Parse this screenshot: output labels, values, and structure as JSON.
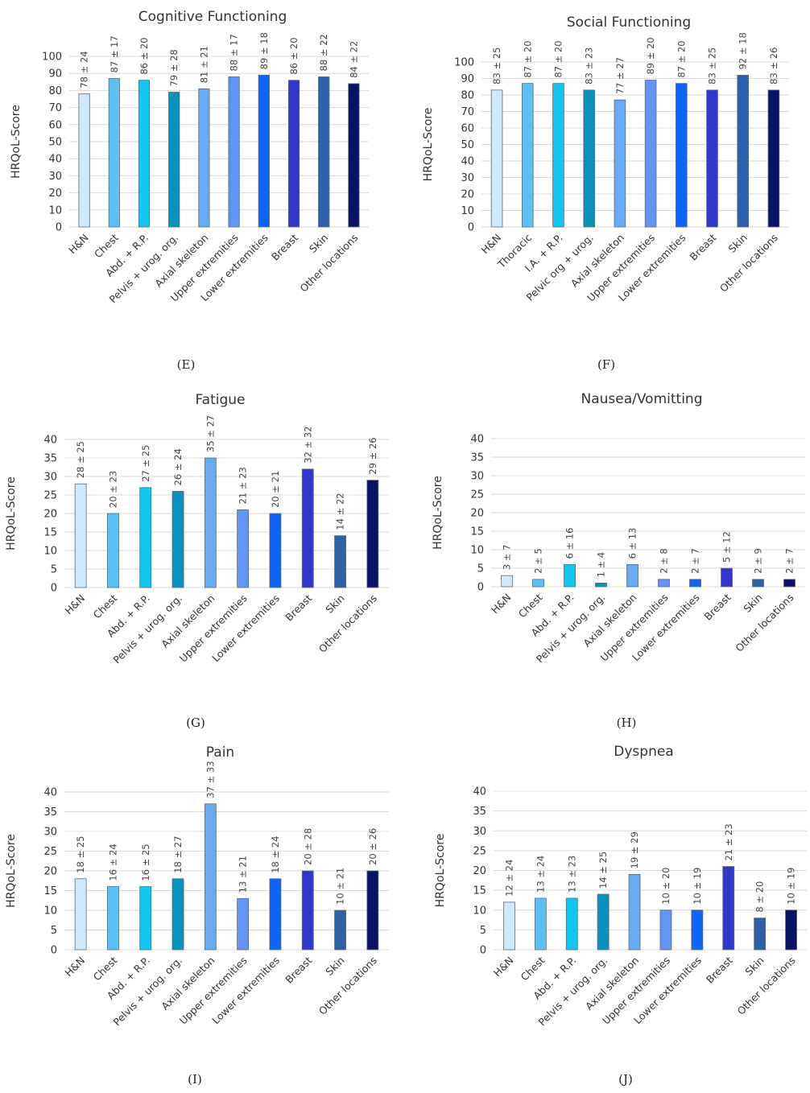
{
  "colors": [
    "#cfe8fb",
    "#5cc0f4",
    "#12c6ef",
    "#0892bc",
    "#68aaf0",
    "#6494f3",
    "#0e64f6",
    "#3337c9",
    "#2f5fa4",
    "#0a1266"
  ],
  "ylabel": "HRQoL-Score",
  "chart_data": [
    {
      "type": "bar",
      "panel_label": "(E)",
      "title": "Cognitive Functioning",
      "ylabel": "HRQoL-Score",
      "ylim": [
        0,
        100
      ],
      "yticks": [
        "0",
        "10",
        "20",
        "30",
        "40",
        "50",
        "60",
        "70",
        "80",
        "90",
        "100"
      ],
      "grid": true,
      "categories": [
        "H&N",
        "Chest",
        "Abd. + R.P.",
        "Pelvis + urog. org.",
        "Axial skeleton",
        "Upper extremities",
        "Lower extremities",
        "Breast",
        "Skin",
        "Other locations"
      ],
      "values": [
        78,
        87,
        86,
        79,
        81,
        88,
        89,
        86,
        88,
        84
      ],
      "labels": [
        "78 ± 24",
        "87 ± 17",
        "86 ± 20",
        "79 ± 28",
        "81 ± 21",
        "88 ± 17",
        "89 ± 18",
        "86 ± 20",
        "88 ± 22",
        "84 ± 22"
      ]
    },
    {
      "type": "bar",
      "panel_label": "(F)",
      "title": "Social Functioning",
      "ylabel": "HRQoL-Score",
      "ylim": [
        0,
        100
      ],
      "yticks": [
        "0",
        "10",
        "20",
        "30",
        "40",
        "50",
        "60",
        "70",
        "80",
        "90",
        "100"
      ],
      "grid": true,
      "categories": [
        "H&N",
        "Thoracic",
        "I.A. + R.P.",
        "Pelvic org + urog.",
        "Axial skeleton",
        "Upper extremities",
        "Lower extremities",
        "Breast",
        "Skin",
        "Other locations"
      ],
      "values": [
        83,
        87,
        87,
        83,
        77,
        89,
        87,
        83,
        92,
        83
      ],
      "labels": [
        "83 ± 25",
        "87 ± 20",
        "87 ± 20",
        "83 ± 23",
        "77 ± 27",
        "89 ± 20",
        "87 ± 20",
        "83 ± 25",
        "92 ± 18",
        "83 ± 26"
      ]
    },
    {
      "type": "bar",
      "panel_label": "(G)",
      "title": "Fatigue",
      "ylabel": "HRQoL-Score",
      "ylim": [
        0,
        40
      ],
      "yticks": [
        "0",
        "5",
        "10",
        "15",
        "20",
        "25",
        "30",
        "35",
        "40"
      ],
      "grid": true,
      "categories": [
        "H&N",
        "Chest",
        "Abd. + R.P.",
        "Pelvis + urog. org.",
        "Axial skeleton",
        "Upper extremities",
        "Lower extremities",
        "Breast",
        "Skin",
        "Other locations"
      ],
      "values": [
        28,
        20,
        27,
        26,
        35,
        21,
        20,
        32,
        14,
        29
      ],
      "labels": [
        "28 ± 25",
        "20 ± 23",
        "27 ± 25",
        "26 ± 24",
        "35 ± 27",
        "21 ± 23",
        "20 ± 21",
        "32 ± 32",
        "14 ± 22",
        "29 ± 26"
      ]
    },
    {
      "type": "bar",
      "panel_label": "(H)",
      "title": "Nausea/Vomitting",
      "ylabel": "HRQoL-Score",
      "ylim": [
        0,
        40
      ],
      "yticks": [
        "0",
        "5",
        "10",
        "15",
        "20",
        "25",
        "30",
        "35",
        "40"
      ],
      "grid": true,
      "categories": [
        "H&N",
        "Chest",
        "Abd. + R.P.",
        "Pelvis + urog. org.",
        "Axial skeleton",
        "Upper extremities",
        "Lower extremities",
        "Breast",
        "Skin",
        "Other locations"
      ],
      "values": [
        3,
        2,
        6,
        1,
        6,
        2,
        2,
        5,
        2,
        2
      ],
      "labels": [
        "3 ± 7",
        "2 ± 5",
        "6 ± 16",
        "1 ± 4",
        "6 ± 13",
        "2 ± 8",
        "2 ± 7",
        "5 ± 12",
        "2 ± 9",
        "2 ± 7"
      ]
    },
    {
      "type": "bar",
      "panel_label": "(I)",
      "title": "Pain",
      "ylabel": "HRQoL-Score",
      "ylim": [
        0,
        40
      ],
      "yticks": [
        "0",
        "5",
        "10",
        "15",
        "20",
        "25",
        "30",
        "35",
        "40"
      ],
      "grid": true,
      "categories": [
        "H&N",
        "Chest",
        "Abd. + R.P.",
        "Pelvis + urog. org.",
        "Axial skeleton",
        "Upper extremities",
        "Lower extremities",
        "Breast",
        "Skin",
        "Other locations"
      ],
      "values": [
        18,
        16,
        16,
        18,
        37,
        13,
        18,
        20,
        10,
        20
      ],
      "labels": [
        "18 ± 25",
        "16 ± 24",
        "16 ± 25",
        "18 ± 27",
        "37 ± 33",
        "13 ± 21",
        "18 ± 24",
        "20 ± 28",
        "10 ± 21",
        "20 ± 26"
      ]
    },
    {
      "type": "bar",
      "panel_label": "(J)",
      "title": "Dyspnea",
      "ylabel": "HRQoL-Score",
      "ylim": [
        0,
        40
      ],
      "yticks": [
        "0",
        "5",
        "10",
        "15",
        "20",
        "25",
        "30",
        "35",
        "40"
      ],
      "grid": true,
      "categories": [
        "H&N",
        "Chest",
        "Abd. + R.P.",
        "Pelvis + urog. org.",
        "Axial skeleton",
        "Upper extremities",
        "Lower extremities",
        "Breast",
        "Skin",
        "Other locations"
      ],
      "values": [
        12,
        13,
        13,
        14,
        19,
        10,
        10,
        21,
        8,
        10
      ],
      "labels": [
        "12 ± 24",
        "13 ± 24",
        "13 ± 23",
        "14 ± 25",
        "19 ± 29",
        "10 ± 20",
        "10 ± 19",
        "21 ± 23",
        "8 ± 20",
        "10 ± 19"
      ]
    }
  ]
}
